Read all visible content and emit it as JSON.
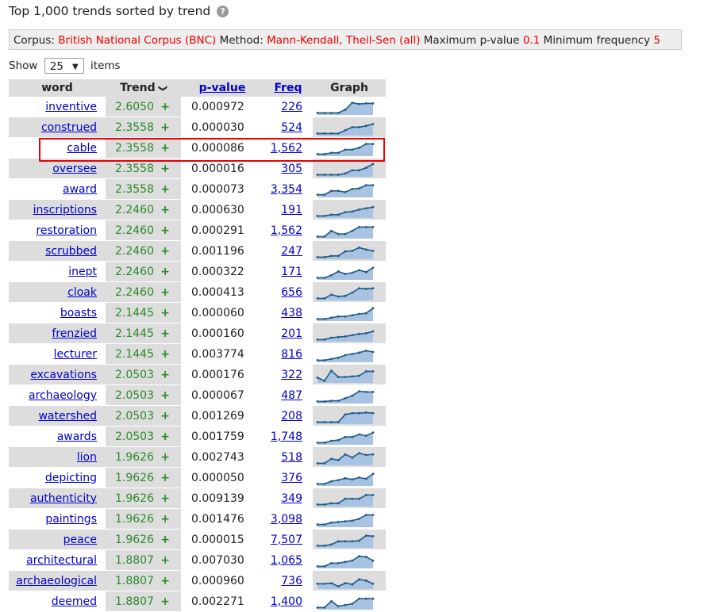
{
  "title": "Top 1,000 trends sorted by trend",
  "help_icon": "question-circle-icon",
  "corpus_bar": {
    "corpus_label": "Corpus:",
    "corpus_value": "British National Corpus (BNC)",
    "method_label": "Method:",
    "method_value": "Mann-Kendall, Theil-Sen (all)",
    "pvalue_label": "Maximum p-value",
    "pvalue_value": "0.1",
    "minfreq_label": "Minimum frequency",
    "minfreq_value": "5"
  },
  "show": {
    "label_before": "Show",
    "selected": "25",
    "label_after": "items"
  },
  "table": {
    "headers": {
      "word": "word",
      "trend": "Trend",
      "pvalue": "p-value",
      "freq": "Freq",
      "graph": "Graph"
    },
    "rows": [
      {
        "word": "inventive",
        "trend": "2.6050",
        "sign": "+",
        "pvalue": "0.000972",
        "freq": "226",
        "graph": [
          0.1,
          0.1,
          0.1,
          0.1,
          0.35,
          0.9,
          0.8,
          0.85,
          0.85
        ]
      },
      {
        "word": "construed",
        "trend": "2.3558",
        "sign": "+",
        "pvalue": "0.000030",
        "freq": "524",
        "graph": [
          0.1,
          0.1,
          0.1,
          0.1,
          0.35,
          0.6,
          0.6,
          0.7,
          0.85
        ]
      },
      {
        "word": "cable",
        "trend": "2.3558",
        "sign": "+",
        "pvalue": "0.000086",
        "freq": "1,562",
        "graph": [
          0.1,
          0.1,
          0.2,
          0.2,
          0.45,
          0.45,
          0.6,
          0.9,
          0.9
        ]
      },
      {
        "word": "oversee",
        "trend": "2.3558",
        "sign": "+",
        "pvalue": "0.000016",
        "freq": "305",
        "graph": [
          0.1,
          0.1,
          0.1,
          0.1,
          0.2,
          0.45,
          0.45,
          0.65,
          0.95
        ]
      },
      {
        "word": "award",
        "trend": "2.3558",
        "sign": "+",
        "pvalue": "0.000073",
        "freq": "3,354",
        "graph": [
          0.15,
          0.15,
          0.45,
          0.45,
          0.35,
          0.6,
          0.65,
          0.9,
          0.9
        ]
      },
      {
        "word": "inscriptions",
        "trend": "2.2460",
        "sign": "+",
        "pvalue": "0.000630",
        "freq": "191",
        "graph": [
          0.1,
          0.1,
          0.2,
          0.2,
          0.4,
          0.45,
          0.6,
          0.7,
          0.8
        ]
      },
      {
        "word": "restoration",
        "trend": "2.2460",
        "sign": "+",
        "pvalue": "0.000291",
        "freq": "1,562",
        "graph": [
          0.1,
          0.1,
          0.55,
          0.3,
          0.3,
          0.55,
          0.85,
          0.85,
          0.85
        ]
      },
      {
        "word": "scrubbed",
        "trend": "2.2460",
        "sign": "+",
        "pvalue": "0.001196",
        "freq": "247",
        "graph": [
          0.1,
          0.1,
          0.2,
          0.2,
          0.55,
          0.6,
          0.85,
          0.7,
          0.6
        ]
      },
      {
        "word": "inept",
        "trend": "2.2460",
        "sign": "+",
        "pvalue": "0.000322",
        "freq": "171",
        "graph": [
          0.1,
          0.1,
          0.3,
          0.6,
          0.4,
          0.5,
          0.7,
          0.55,
          0.9
        ]
      },
      {
        "word": "cloak",
        "trend": "2.2460",
        "sign": "+",
        "pvalue": "0.000413",
        "freq": "656",
        "graph": [
          0.1,
          0.1,
          0.4,
          0.25,
          0.3,
          0.55,
          0.9,
          0.85,
          0.9
        ]
      },
      {
        "word": "boasts",
        "trend": "2.1445",
        "sign": "+",
        "pvalue": "0.000060",
        "freq": "438",
        "graph": [
          0.1,
          0.1,
          0.2,
          0.3,
          0.3,
          0.4,
          0.5,
          0.55,
          0.95
        ]
      },
      {
        "word": "frenzied",
        "trend": "2.1445",
        "sign": "+",
        "pvalue": "0.000160",
        "freq": "201",
        "graph": [
          0.1,
          0.1,
          0.25,
          0.3,
          0.35,
          0.45,
          0.55,
          0.6,
          0.75
        ]
      },
      {
        "word": "lecturer",
        "trend": "2.1445",
        "sign": "+",
        "pvalue": "0.003774",
        "freq": "816",
        "graph": [
          0.1,
          0.1,
          0.2,
          0.3,
          0.5,
          0.6,
          0.7,
          0.85,
          0.75
        ]
      },
      {
        "word": "excavations",
        "trend": "2.0503",
        "sign": "+",
        "pvalue": "0.000176",
        "freq": "322",
        "graph": [
          0.35,
          0.1,
          0.9,
          0.4,
          0.4,
          0.45,
          0.5,
          0.85,
          0.85
        ]
      },
      {
        "word": "archaeology",
        "trend": "2.0503",
        "sign": "+",
        "pvalue": "0.000067",
        "freq": "487",
        "graph": [
          0.1,
          0.1,
          0.15,
          0.15,
          0.35,
          0.55,
          0.9,
          0.85,
          0.85
        ]
      },
      {
        "word": "watershed",
        "trend": "2.0503",
        "sign": "+",
        "pvalue": "0.001269",
        "freq": "208",
        "graph": [
          0.1,
          0.1,
          0.1,
          0.1,
          0.7,
          0.8,
          0.8,
          0.85,
          0.8
        ]
      },
      {
        "word": "awards",
        "trend": "2.0503",
        "sign": "+",
        "pvalue": "0.001759",
        "freq": "1,748",
        "graph": [
          0.1,
          0.1,
          0.25,
          0.3,
          0.55,
          0.55,
          0.75,
          0.65,
          0.9
        ]
      },
      {
        "word": "lion",
        "trend": "1.9626",
        "sign": "+",
        "pvalue": "0.002743",
        "freq": "518",
        "graph": [
          0.1,
          0.1,
          0.45,
          0.35,
          0.8,
          0.55,
          0.9,
          0.75,
          0.8
        ]
      },
      {
        "word": "depicting",
        "trend": "1.9626",
        "sign": "+",
        "pvalue": "0.000050",
        "freq": "376",
        "graph": [
          0.1,
          0.1,
          0.3,
          0.4,
          0.55,
          0.45,
          0.6,
          0.5,
          0.9
        ]
      },
      {
        "word": "authenticity",
        "trend": "1.9626",
        "sign": "+",
        "pvalue": "0.009139",
        "freq": "349",
        "graph": [
          0.1,
          0.1,
          0.2,
          0.2,
          0.55,
          0.55,
          0.55,
          0.85,
          0.85
        ]
      },
      {
        "word": "paintings",
        "trend": "1.9626",
        "sign": "+",
        "pvalue": "0.001476",
        "freq": "3,098",
        "graph": [
          0.15,
          0.15,
          0.3,
          0.35,
          0.4,
          0.45,
          0.6,
          0.9,
          0.9
        ]
      },
      {
        "word": "peace",
        "trend": "1.9626",
        "sign": "+",
        "pvalue": "0.000015",
        "freq": "7,507",
        "graph": [
          0.1,
          0.1,
          0.2,
          0.45,
          0.45,
          0.45,
          0.5,
          0.9,
          0.85
        ]
      },
      {
        "word": "architectural",
        "trend": "1.8807",
        "sign": "+",
        "pvalue": "0.007030",
        "freq": "1,065",
        "graph": [
          0.1,
          0.1,
          0.35,
          0.35,
          0.45,
          0.55,
          0.9,
          0.85,
          0.55
        ]
      },
      {
        "word": "archaeological",
        "trend": "1.8807",
        "sign": "+",
        "pvalue": "0.000960",
        "freq": "736",
        "graph": [
          0.35,
          0.35,
          0.4,
          0.15,
          0.4,
          0.3,
          0.7,
          0.6,
          0.35
        ]
      },
      {
        "word": "deemed",
        "trend": "1.8807",
        "sign": "+",
        "pvalue": "0.002271",
        "freq": "1,400",
        "graph": [
          0.1,
          0.1,
          0.6,
          0.2,
          0.3,
          0.4,
          0.8,
          0.8,
          0.8
        ]
      }
    ]
  },
  "highlighted_word": "cable",
  "colors": {
    "accent_red": "#ee0000",
    "link_blue": "#0000cc",
    "trend_green": "#2a8a2a",
    "graph_fill": "#a7c3e1",
    "graph_line": "#1e5a8a"
  }
}
